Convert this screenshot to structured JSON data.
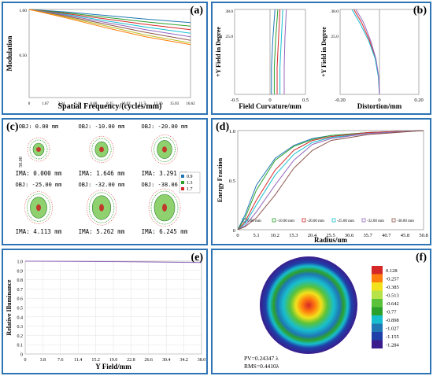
{
  "colors": {
    "panel_border": "#2e74b5",
    "series": [
      "#1f77b4",
      "#2ca02c",
      "#d62728",
      "#17becf",
      "#9467bd",
      "#8c564b",
      "#bcbd22",
      "#ff7f0e"
    ]
  },
  "panels": {
    "a": {
      "label": "(a)",
      "xlabel": "Spatial Frequency/(cycles/mm)",
      "ylabel": "Modulation",
      "xticks": [
        "0",
        "1.67",
        "3.34",
        "5.0",
        "6.68",
        "8.35",
        "10.02",
        "11.7",
        "13.36",
        "15.03",
        "16.62"
      ],
      "yticks": [
        "1.00",
        "0.50"
      ]
    },
    "b": {
      "label": "(b)",
      "left": {
        "xlabel": "Field Curvature/mm",
        "ylabel": "+Y Field in Degree",
        "xticks": [
          "-0.5",
          "0",
          "0.5"
        ],
        "yticks": [
          "38.0",
          "25.0"
        ]
      },
      "right": {
        "xlabel": "Distortion/mm",
        "ylabel": "+Y Field in Degree",
        "xticks": [
          "-0.20",
          "0",
          "0.20"
        ],
        "yticks": [
          "38.0",
          "25.0"
        ]
      }
    },
    "c": {
      "label": "(c)",
      "scale_label": "50.00",
      "legend": [
        "0.9",
        "1.3",
        "1.7"
      ],
      "spots": [
        {
          "obj": "OBJ: 0.00 mm",
          "ima": "IMA: 0.000 mm"
        },
        {
          "obj": "OBJ: -10.00 mm",
          "ima": "IMA: 1.646 mm"
        },
        {
          "obj": "OBJ: -20.00 mm",
          "ima": "IMA: 3.291 mm"
        },
        {
          "obj": "OBJ: -25.00 mm",
          "ima": "IMA: 4.113 mm"
        },
        {
          "obj": "OBJ: -32.00 mm",
          "ima": "IMA: 5.262 mm"
        },
        {
          "obj": "OBJ: -38.06 mm",
          "ima": "IMA: 6.245 mm"
        }
      ]
    },
    "d": {
      "label": "(d)",
      "xlabel": "Radius/um",
      "ylabel": "Energy Fraction",
      "xticks": [
        "0",
        "5.1",
        "10.2",
        "15.3",
        "20.4",
        "25.5",
        "30.6",
        "35.7",
        "40.7",
        "45.8",
        "50.8"
      ],
      "yticks": [
        "1.0",
        "0.5",
        "0"
      ],
      "legend": [
        "0.00 mm",
        "-10.00 mm",
        "-20.00 mm",
        "-25.00 mm",
        "-32.00 mm",
        "-38.00 mm"
      ]
    },
    "e": {
      "label": "(e)",
      "xlabel": "Y Field/mm",
      "ylabel": "Relative Illuminance",
      "xticks": [
        "0",
        "3.8",
        "7.6",
        "11.4",
        "15.2",
        "19.0",
        "22.8",
        "26.6",
        "30.4",
        "34.2",
        "38.0"
      ],
      "yticks": [
        "1.0",
        "0.9",
        "0.8",
        "0.7",
        "0.6",
        "0.5",
        "0.4",
        "0.3",
        "0.2",
        "0.1",
        "0"
      ]
    },
    "f": {
      "label": "(f)",
      "colorbar": [
        "0.128",
        "-0.257",
        "-0.385",
        "-0.513",
        "-0.642",
        "-0.77",
        "-0.898",
        "-1.027",
        "-1.155",
        "-1.284"
      ],
      "pv": "PV=0.24347 λ",
      "rms": "RMS=0.4410λ"
    }
  },
  "chart_data": [
    {
      "panel": "a",
      "type": "line",
      "xlabel": "Spatial Frequency/(cycles/mm)",
      "ylabel": "Modulation",
      "xlim": [
        0,
        16.62
      ],
      "ylim": [
        0,
        1
      ],
      "series": [
        {
          "x": [
            0,
            4,
            8,
            12,
            16.62
          ],
          "values": [
            1.0,
            0.97,
            0.93,
            0.89,
            0.85
          ]
        },
        {
          "x": [
            0,
            4,
            8,
            12,
            16.62
          ],
          "values": [
            1.0,
            0.96,
            0.91,
            0.86,
            0.81
          ]
        },
        {
          "x": [
            0,
            4,
            8,
            12,
            16.62
          ],
          "values": [
            1.0,
            0.95,
            0.89,
            0.83,
            0.77
          ]
        },
        {
          "x": [
            0,
            4,
            8,
            12,
            16.62
          ],
          "values": [
            1.0,
            0.94,
            0.87,
            0.8,
            0.73
          ]
        },
        {
          "x": [
            0,
            4,
            8,
            12,
            16.62
          ],
          "values": [
            1.0,
            0.93,
            0.85,
            0.77,
            0.69
          ]
        },
        {
          "x": [
            0,
            4,
            8,
            12,
            16.62
          ],
          "values": [
            1.0,
            0.92,
            0.83,
            0.74,
            0.65
          ]
        },
        {
          "x": [
            0,
            4,
            8,
            12,
            16.62
          ],
          "values": [
            1.0,
            0.91,
            0.81,
            0.71,
            0.62
          ]
        },
        {
          "x": [
            0,
            4,
            8,
            12,
            16.62
          ],
          "values": [
            1.0,
            0.9,
            0.79,
            0.69,
            0.6
          ]
        }
      ]
    },
    {
      "panel": "b-left",
      "type": "line",
      "xlabel": "Field Curvature/mm",
      "ylabel": "+Y Field in Degree",
      "xlim": [
        -0.5,
        0.5
      ],
      "ylim": [
        0,
        38
      ],
      "series": [
        {
          "x": [
            0.02,
            0.02,
            0.04,
            0.07
          ],
          "values": [
            0,
            12,
            25,
            38
          ]
        },
        {
          "x": [
            0.06,
            0.06,
            0.08,
            0.11
          ],
          "values": [
            0,
            12,
            25,
            38
          ]
        },
        {
          "x": [
            0.1,
            0.1,
            0.12,
            0.14
          ],
          "values": [
            0,
            12,
            25,
            38
          ]
        },
        {
          "x": [
            0.14,
            0.14,
            0.16,
            0.18
          ],
          "values": [
            0,
            12,
            25,
            38
          ]
        },
        {
          "x": [
            0.2,
            0.2,
            0.21,
            0.23
          ],
          "values": [
            0,
            12,
            25,
            38
          ]
        }
      ]
    },
    {
      "panel": "b-right",
      "type": "line",
      "xlabel": "Distortion/mm",
      "ylabel": "+Y Field in Degree",
      "xlim": [
        -0.2,
        0.2
      ],
      "ylim": [
        0,
        38
      ],
      "series": [
        {
          "x": [
            0,
            -0.005,
            -0.02,
            -0.05,
            -0.09,
            -0.13
          ],
          "values": [
            0,
            8,
            16,
            24,
            32,
            38
          ]
        },
        {
          "x": [
            0,
            -0.006,
            -0.022,
            -0.055,
            -0.1,
            -0.14
          ],
          "values": [
            0,
            8,
            16,
            24,
            32,
            38
          ]
        },
        {
          "x": [
            0,
            -0.004,
            -0.018,
            -0.045,
            -0.08,
            -0.12
          ],
          "values": [
            0,
            8,
            16,
            24,
            32,
            38
          ]
        }
      ]
    },
    {
      "panel": "d",
      "type": "line",
      "xlabel": "Radius/um",
      "ylabel": "Energy Fraction",
      "xlim": [
        0,
        50.8
      ],
      "ylim": [
        0,
        1
      ],
      "series": [
        {
          "name": "0.00 mm",
          "x": [
            0,
            2,
            5.1,
            10.2,
            15.3,
            20.4,
            25.5,
            35.7,
            50.8
          ],
          "values": [
            0,
            0.15,
            0.45,
            0.72,
            0.85,
            0.92,
            0.95,
            0.98,
            1.0
          ]
        },
        {
          "name": "-10.00 mm",
          "x": [
            0,
            2,
            5.1,
            10.2,
            15.3,
            20.4,
            25.5,
            35.7,
            50.8
          ],
          "values": [
            0,
            0.12,
            0.4,
            0.7,
            0.84,
            0.91,
            0.95,
            0.98,
            1.0
          ]
        },
        {
          "name": "-20.00 mm",
          "x": [
            0,
            2,
            5.1,
            10.2,
            15.3,
            20.4,
            25.5,
            35.7,
            50.8
          ],
          "values": [
            0,
            0.08,
            0.3,
            0.6,
            0.8,
            0.9,
            0.94,
            0.98,
            1.0
          ]
        },
        {
          "name": "-25.00 mm",
          "x": [
            0,
            2,
            5.1,
            10.2,
            15.3,
            20.4,
            25.5,
            35.7,
            50.8
          ],
          "values": [
            0,
            0.06,
            0.25,
            0.55,
            0.76,
            0.88,
            0.93,
            0.97,
            1.0
          ]
        },
        {
          "name": "-32.00 mm",
          "x": [
            0,
            2,
            5.1,
            10.2,
            15.3,
            20.4,
            25.5,
            35.7,
            50.8
          ],
          "values": [
            0,
            0.04,
            0.18,
            0.45,
            0.7,
            0.86,
            0.92,
            0.97,
            1.0
          ]
        },
        {
          "name": "-38.00 mm",
          "x": [
            0,
            2,
            5.1,
            10.2,
            15.3,
            20.4,
            25.5,
            35.7,
            50.8
          ],
          "values": [
            0,
            0.03,
            0.12,
            0.35,
            0.62,
            0.8,
            0.9,
            0.96,
            1.0
          ]
        }
      ]
    },
    {
      "panel": "e",
      "type": "line",
      "xlabel": "Y Field/mm",
      "ylabel": "Relative Illuminance",
      "xlim": [
        0,
        38
      ],
      "ylim": [
        0,
        1
      ],
      "series": [
        {
          "x": [
            0,
            10,
            20,
            30,
            38
          ],
          "values": [
            1.0,
            0.998,
            0.995,
            0.99,
            0.985
          ]
        }
      ]
    }
  ]
}
